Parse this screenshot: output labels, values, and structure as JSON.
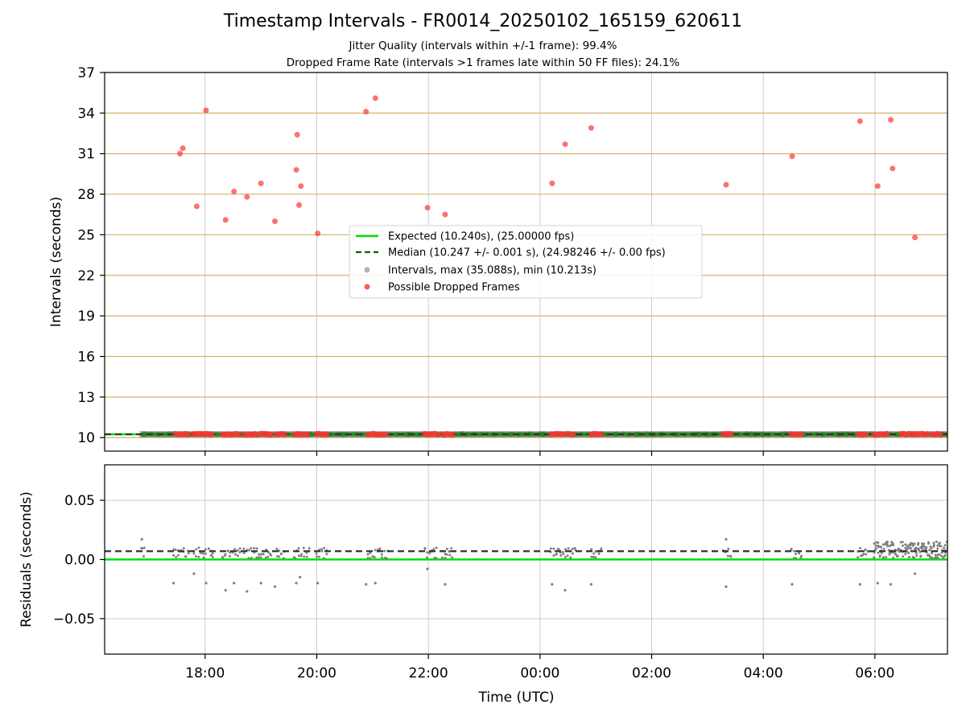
{
  "title": "Timestamp Intervals - FR0014_20250102_165159_620611",
  "subtitle_1": "Jitter Quality (intervals within +/-1 frame): 99.4%",
  "subtitle_2": "Dropped Frame Rate (intervals >1 frames late within 50 FF files): 24.1%",
  "colors": {
    "expected": "#00e000",
    "median": "#006400",
    "intervals": "#808080",
    "dropped": "#ff3333",
    "ygrid": "#d4b46a",
    "xgrid": "#cccccc"
  },
  "chart_data": [
    {
      "type": "scatter",
      "ylabel": "Intervals (seconds)",
      "xlim": [
        "16:12",
        "07:18"
      ],
      "ylim": [
        9,
        37
      ],
      "y_ticks": [
        "10",
        "13",
        "16",
        "19",
        "22",
        "25",
        "28",
        "31",
        "34",
        "37"
      ],
      "x_ticks": [
        "18:00",
        "20:00",
        "22:00",
        "00:00",
        "02:00",
        "04:00",
        "06:00"
      ],
      "grid": "on",
      "legend_position": "center",
      "legend": [
        "Expected (10.240s), (25.00000 fps)",
        "Median (10.247 +/- 0.001 s), (24.98246 +/- 0.00 fps)",
        "Intervals, max (35.088s), min (10.213s)",
        "Possible Dropped Frames"
      ],
      "expected_value": 10.24,
      "median_value": 10.247,
      "series": [
        {
          "name": "Possible Dropped Frames",
          "points": [
            [
              "17:33",
              31.0
            ],
            [
              "17:36",
              31.4
            ],
            [
              "17:51",
              27.1
            ],
            [
              "18:01",
              34.2
            ],
            [
              "18:22",
              26.1
            ],
            [
              "18:31",
              28.2
            ],
            [
              "18:45",
              27.8
            ],
            [
              "19:00",
              28.8
            ],
            [
              "19:15",
              26.0
            ],
            [
              "19:38",
              29.8
            ],
            [
              "19:39",
              32.4
            ],
            [
              "19:41",
              27.2
            ],
            [
              "19:43",
              28.6
            ],
            [
              "20:01",
              25.1
            ],
            [
              "20:53",
              34.1
            ],
            [
              "21:03",
              35.1
            ],
            [
              "21:59",
              27.0
            ],
            [
              "22:18",
              26.5
            ],
            [
              "00:13",
              28.8
            ],
            [
              "00:27",
              31.7
            ],
            [
              "00:55",
              32.9
            ],
            [
              "03:20",
              28.7
            ],
            [
              "04:31",
              30.8
            ],
            [
              "05:44",
              33.4
            ],
            [
              "06:03",
              28.6
            ],
            [
              "06:17",
              33.5
            ],
            [
              "06:19",
              29.9
            ],
            [
              "06:43",
              24.8
            ]
          ],
          "baseline_clusters": [
            [
              "17:28",
              "17:44"
            ],
            [
              "17:48",
              "18:10"
            ],
            [
              "18:19",
              "18:38"
            ],
            [
              "18:42",
              "18:58"
            ],
            [
              "19:00",
              "19:12"
            ],
            [
              "19:17",
              "19:26"
            ],
            [
              "19:36",
              "19:52"
            ],
            [
              "20:00",
              "20:12"
            ],
            [
              "20:55",
              "21:16"
            ],
            [
              "21:56",
              "22:10"
            ],
            [
              "22:15",
              "22:27"
            ],
            [
              "00:12",
              "00:27"
            ],
            [
              "00:30",
              "00:38"
            ],
            [
              "00:55",
              "01:07"
            ],
            [
              "03:17",
              "03:27"
            ],
            [
              "04:30",
              "04:42"
            ],
            [
              "05:42",
              "05:53"
            ],
            [
              "05:59",
              "06:15"
            ],
            [
              "06:28",
              "06:37"
            ],
            [
              "06:40",
              "06:58"
            ],
            [
              "07:02",
              "07:13"
            ]
          ]
        },
        {
          "name": "Intervals",
          "range": [
            "16:52",
            "07:18"
          ],
          "value": 10.247
        }
      ]
    },
    {
      "type": "scatter",
      "ylabel": "Residuals (seconds)",
      "xlabel": "Time (UTC)",
      "xlim": [
        "16:12",
        "07:18"
      ],
      "ylim": [
        -0.08,
        0.08
      ],
      "y_ticks": [
        "−0.05",
        "0.00",
        "0.05"
      ],
      "x_ticks": [
        "18:00",
        "20:00",
        "22:00",
        "00:00",
        "02:00",
        "04:00",
        "06:00"
      ],
      "grid": "on",
      "expected_residual": 0.0,
      "median_residual": 0.007,
      "series": [
        {
          "name": "Residuals",
          "outliers": [
            [
              "16:52",
              0.017
            ],
            [
              "17:26",
              -0.02
            ],
            [
              "17:48",
              -0.012
            ],
            [
              "18:01",
              -0.02
            ],
            [
              "18:22",
              -0.026
            ],
            [
              "18:31",
              -0.02
            ],
            [
              "18:45",
              -0.027
            ],
            [
              "19:00",
              -0.02
            ],
            [
              "19:15",
              -0.023
            ],
            [
              "19:38",
              -0.02
            ],
            [
              "19:42",
              -0.015
            ],
            [
              "20:01",
              -0.02
            ],
            [
              "20:53",
              -0.021
            ],
            [
              "21:03",
              -0.02
            ],
            [
              "21:59",
              -0.008
            ],
            [
              "22:18",
              -0.021
            ],
            [
              "00:13",
              -0.021
            ],
            [
              "00:27",
              -0.026
            ],
            [
              "00:55",
              -0.021
            ],
            [
              "03:20",
              -0.023
            ],
            [
              "03:20",
              0.017
            ],
            [
              "04:31",
              -0.021
            ],
            [
              "05:44",
              -0.021
            ],
            [
              "06:03",
              -0.02
            ],
            [
              "06:17",
              -0.021
            ],
            [
              "06:43",
              -0.012
            ]
          ],
          "clusters": [
            [
              "16:52",
              "16:55"
            ],
            [
              "17:26",
              "17:44"
            ],
            [
              "17:48",
              "18:10"
            ],
            [
              "18:19",
              "18:38"
            ],
            [
              "18:42",
              "19:12"
            ],
            [
              "19:17",
              "19:26"
            ],
            [
              "19:36",
              "19:52"
            ],
            [
              "20:00",
              "20:12"
            ],
            [
              "20:55",
              "21:16"
            ],
            [
              "21:56",
              "22:10"
            ],
            [
              "22:15",
              "22:27"
            ],
            [
              "00:12",
              "00:38"
            ],
            [
              "00:55",
              "01:07"
            ],
            [
              "03:17",
              "03:27"
            ],
            [
              "04:30",
              "04:42"
            ],
            [
              "05:42",
              "05:53"
            ],
            [
              "05:59",
              "07:18"
            ]
          ]
        }
      ]
    }
  ]
}
